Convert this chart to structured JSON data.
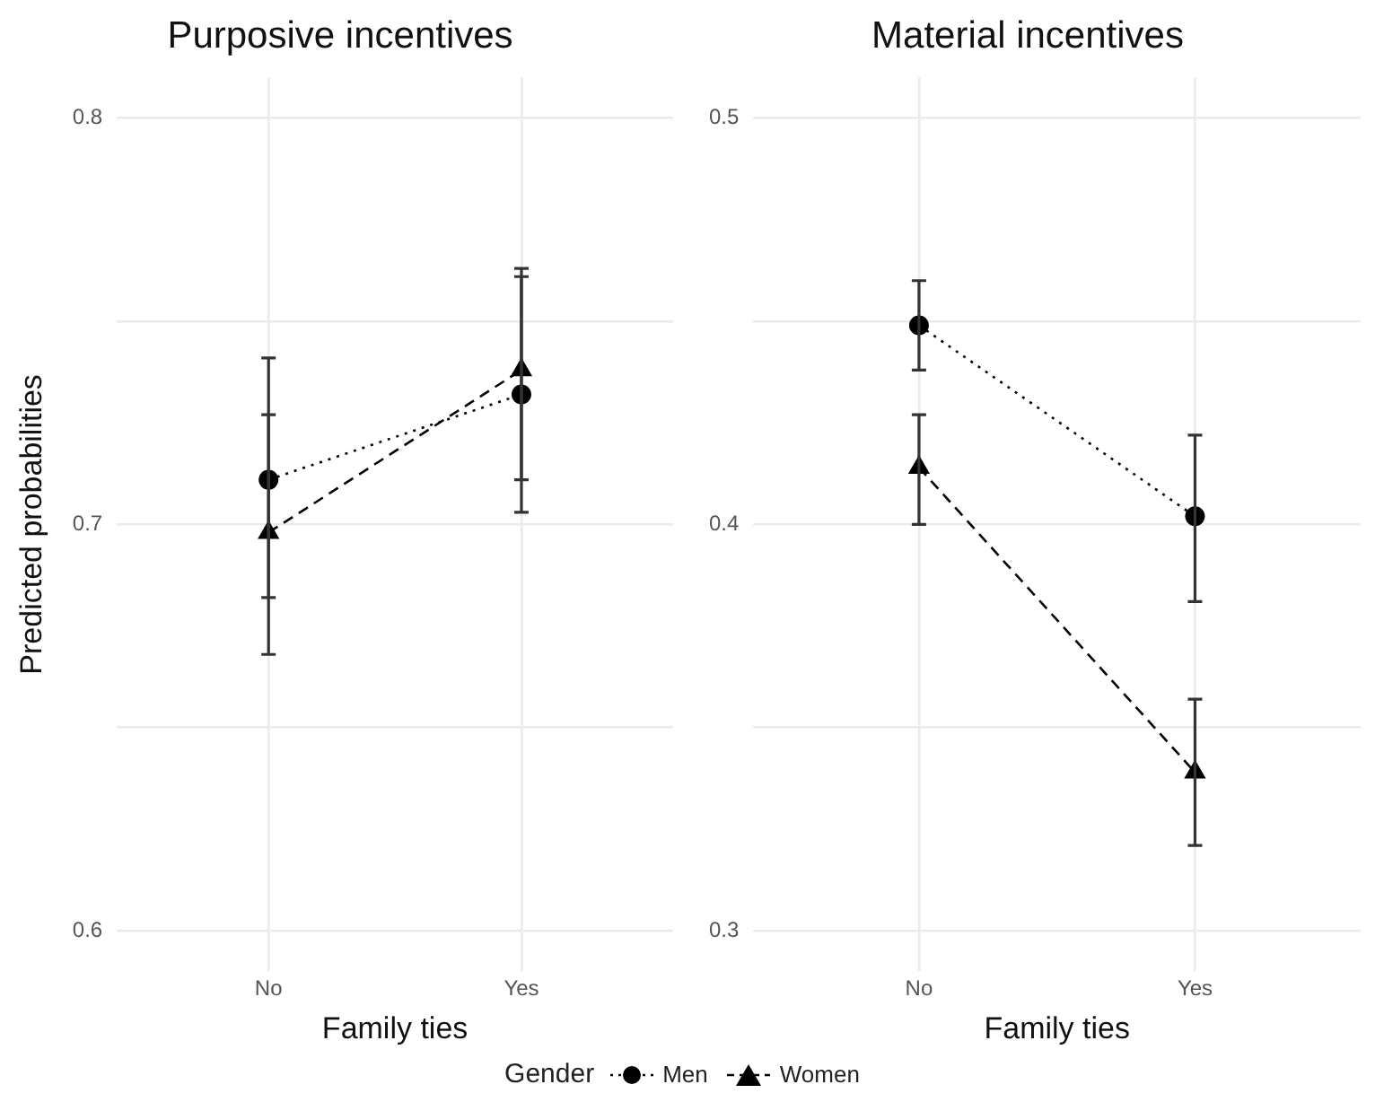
{
  "chart_data": [
    {
      "type": "line",
      "title": "Purposive incentives",
      "xlabel": "Family ties",
      "ylabel": "Predicted probabilities",
      "legend_title": "Gender",
      "legend": "bottom",
      "categories": [
        "No",
        "Yes"
      ],
      "ylim": [
        0.59,
        0.81
      ],
      "yticks": [
        0.6,
        {
          "value": 0.65,
          "label": null
        },
        0.7,
        {
          "value": 0.75,
          "label": null
        },
        0.8
      ],
      "grid": true,
      "series": [
        {
          "name": "Men",
          "color": "#000000",
          "marker": "circle",
          "line_style": "dotted",
          "values": [
            0.711,
            0.732
          ],
          "errors": [
            [
              0.682,
              0.741
            ],
            [
              0.703,
              0.761
            ]
          ]
        },
        {
          "name": "Women",
          "color": "#000000",
          "marker": "triangle",
          "line_style": "dashed",
          "values": [
            0.698,
            0.738
          ],
          "errors": [
            [
              0.668,
              0.727
            ],
            [
              0.711,
              0.763
            ]
          ]
        }
      ]
    },
    {
      "type": "line",
      "title": "Material incentives",
      "xlabel": "Family ties",
      "legend": "bottom",
      "categories": [
        "No",
        "Yes"
      ],
      "ylim": [
        0.29,
        0.51
      ],
      "yticks": [
        0.3,
        {
          "value": 0.35,
          "label": null
        },
        0.4,
        {
          "value": 0.45,
          "label": null
        },
        0.5
      ],
      "grid": true,
      "series": [
        {
          "name": "Men",
          "color": "#000000",
          "marker": "circle",
          "line_style": "dotted",
          "values": [
            0.449,
            0.402
          ],
          "errors": [
            [
              0.438,
              0.46
            ],
            [
              0.381,
              0.422
            ]
          ]
        },
        {
          "name": "Women",
          "color": "#000000",
          "marker": "triangle",
          "line_style": "dashed",
          "values": [
            0.414,
            0.339
          ],
          "errors": [
            [
              0.4,
              0.427
            ],
            [
              0.321,
              0.357
            ]
          ]
        }
      ]
    }
  ]
}
